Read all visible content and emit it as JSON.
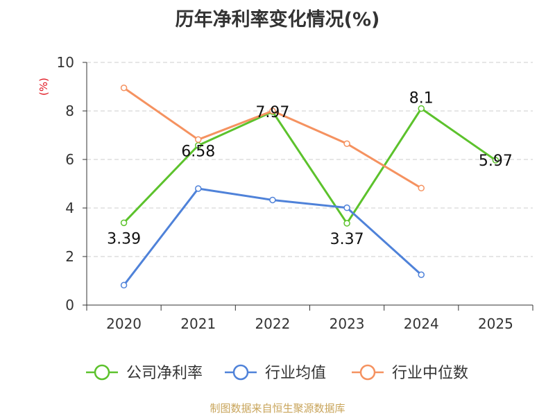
{
  "title": "历年净利率变化情况(%)",
  "source": "制图数据来自恒生聚源数据库",
  "chart_data": {
    "type": "line",
    "title": "历年净利率变化情况(%)",
    "ylabel": "(%)",
    "xlabel": "",
    "categories": [
      "2020",
      "2021",
      "2022",
      "2023",
      "2024",
      "2025"
    ],
    "ylim": [
      0,
      10
    ],
    "yticks": [
      0,
      2,
      4,
      6,
      8,
      10
    ],
    "grid": true,
    "legend_position": "bottom",
    "series": [
      {
        "name": "公司净利率",
        "color": "#5cc22c",
        "values": [
          3.39,
          6.58,
          7.97,
          3.37,
          8.1,
          5.97
        ],
        "labels": [
          "3.39",
          "6.58",
          "7.97",
          "3.37",
          "8.1",
          "5.97"
        ]
      },
      {
        "name": "行业均值",
        "color": "#4f82d9",
        "values": [
          0.82,
          4.8,
          4.33,
          4.01,
          1.25,
          null
        ]
      },
      {
        "name": "行业中位数",
        "color": "#f59260",
        "values": [
          8.95,
          6.82,
          8.0,
          6.65,
          4.82,
          null
        ]
      }
    ]
  }
}
